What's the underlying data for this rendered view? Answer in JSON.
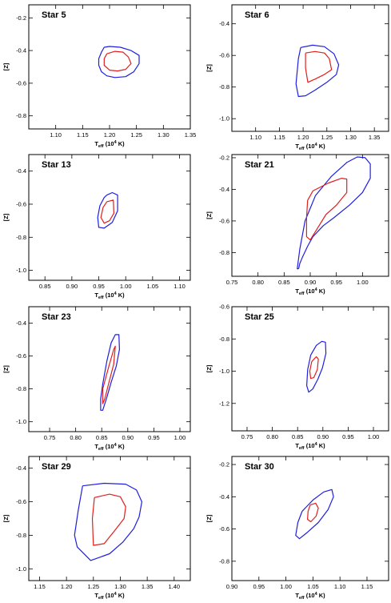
{
  "colors": {
    "outer": "#1f1fe0",
    "inner": "#e01f1f",
    "frame": "#000000"
  },
  "chart_data": [
    {
      "type": "line",
      "title": "Star 5",
      "xlabel": "T_eff (10^4 K)",
      "xlabel_main": "T",
      "xlabel_sub": "eff",
      "xlabel_rest": " (10",
      "xlabel_sup": "4",
      "xlabel_tail": " K)",
      "ylabel": "[Z]",
      "xlim": [
        1.05,
        1.35
      ],
      "ylim": [
        -0.88,
        -0.12
      ],
      "xticks": [
        1.1,
        1.15,
        1.2,
        1.25,
        1.3,
        1.35
      ],
      "yticks": [
        -0.8,
        -0.6,
        -0.4,
        -0.2
      ],
      "series": [
        {
          "role": "outer",
          "x": [
            1.19,
            1.2,
            1.22,
            1.24,
            1.255,
            1.255,
            1.245,
            1.23,
            1.21,
            1.195,
            1.185,
            1.18,
            1.18,
            1.185,
            1.19
          ],
          "y": [
            -0.38,
            -0.375,
            -0.38,
            -0.4,
            -0.43,
            -0.48,
            -0.53,
            -0.56,
            -0.565,
            -0.555,
            -0.53,
            -0.49,
            -0.45,
            -0.41,
            -0.38
          ]
        },
        {
          "role": "inner",
          "x": [
            1.195,
            1.21,
            1.225,
            1.235,
            1.24,
            1.23,
            1.215,
            1.2,
            1.19,
            1.19,
            1.195
          ],
          "y": [
            -0.42,
            -0.405,
            -0.41,
            -0.44,
            -0.48,
            -0.515,
            -0.525,
            -0.52,
            -0.49,
            -0.45,
            -0.42
          ]
        }
      ]
    },
    {
      "type": "line",
      "title": "Star 6",
      "xlabel": "T_eff (10^4 K)",
      "xlabel_main": "T",
      "xlabel_sub": "eff",
      "xlabel_rest": " (10",
      "xlabel_sup": "4",
      "xlabel_tail": " K)",
      "ylabel": "[Z]",
      "xlim": [
        1.05,
        1.38
      ],
      "ylim": [
        -1.08,
        -0.28
      ],
      "xticks": [
        1.1,
        1.15,
        1.2,
        1.25,
        1.3,
        1.35
      ],
      "yticks": [
        -1.0,
        -0.8,
        -0.6,
        -0.4
      ],
      "series": [
        {
          "role": "outer",
          "x": [
            1.195,
            1.22,
            1.245,
            1.265,
            1.275,
            1.27,
            1.25,
            1.225,
            1.205,
            1.19,
            1.185,
            1.19,
            1.195
          ],
          "y": [
            -0.55,
            -0.535,
            -0.545,
            -0.59,
            -0.66,
            -0.72,
            -0.77,
            -0.82,
            -0.855,
            -0.86,
            -0.78,
            -0.62,
            -0.55
          ]
        },
        {
          "role": "inner",
          "x": [
            1.205,
            1.225,
            1.245,
            1.255,
            1.26,
            1.245,
            1.225,
            1.21,
            1.205,
            1.205
          ],
          "y": [
            -0.585,
            -0.575,
            -0.585,
            -0.62,
            -0.69,
            -0.72,
            -0.75,
            -0.77,
            -0.68,
            -0.585
          ]
        }
      ]
    },
    {
      "type": "line",
      "title": "Star 13",
      "xlabel": "T_eff (10^4 K)",
      "xlabel_main": "T",
      "xlabel_sub": "eff",
      "xlabel_rest": " (10",
      "xlabel_sup": "4",
      "xlabel_tail": " K)",
      "ylabel": "[Z]",
      "xlim": [
        0.82,
        1.12
      ],
      "ylim": [
        -1.06,
        -0.3
      ],
      "xticks": [
        0.85,
        0.9,
        0.95,
        1.0,
        1.05,
        1.1
      ],
      "yticks": [
        -1.0,
        -0.8,
        -0.6,
        -0.4
      ],
      "series": [
        {
          "role": "outer",
          "x": [
            0.965,
            0.975,
            0.985,
            0.985,
            0.975,
            0.96,
            0.95,
            0.948,
            0.952,
            0.96,
            0.965
          ],
          "y": [
            -0.545,
            -0.53,
            -0.545,
            -0.64,
            -0.71,
            -0.745,
            -0.74,
            -0.68,
            -0.61,
            -0.56,
            -0.545
          ]
        },
        {
          "role": "inner",
          "x": [
            0.965,
            0.977,
            0.978,
            0.97,
            0.96,
            0.954,
            0.958,
            0.965
          ],
          "y": [
            -0.585,
            -0.575,
            -0.655,
            -0.7,
            -0.715,
            -0.68,
            -0.62,
            -0.585
          ]
        }
      ]
    },
    {
      "type": "line",
      "title": "Star 21",
      "xlabel": "T_eff (10^4 K)",
      "xlabel_main": "T",
      "xlabel_sub": "eff",
      "xlabel_rest": " (10",
      "xlabel_sup": "4",
      "xlabel_tail": " K)",
      "ylabel": "[Z]",
      "xlim": [
        0.75,
        1.05
      ],
      "ylim": [
        -0.95,
        -0.18
      ],
      "xticks": [
        0.75,
        0.8,
        0.85,
        0.9,
        0.95,
        1.0
      ],
      "yticks": [
        -0.8,
        -0.6,
        -0.4,
        -0.2
      ],
      "series": [
        {
          "role": "outer",
          "x": [
            0.875,
            0.88,
            0.89,
            0.91,
            0.94,
            0.97,
            0.99,
            1.005,
            1.015,
            1.015,
            1.0,
            0.975,
            0.945,
            0.925,
            0.905,
            0.895,
            0.885,
            0.88,
            0.878,
            0.875
          ],
          "y": [
            -0.905,
            -0.78,
            -0.6,
            -0.44,
            -0.32,
            -0.23,
            -0.195,
            -0.2,
            -0.24,
            -0.33,
            -0.42,
            -0.5,
            -0.58,
            -0.63,
            -0.7,
            -0.76,
            -0.83,
            -0.87,
            -0.9,
            -0.905
          ]
        },
        {
          "role": "inner",
          "x": [
            0.895,
            0.905,
            0.935,
            0.96,
            0.97,
            0.97,
            0.95,
            0.93,
            0.915,
            0.9,
            0.893,
            0.893,
            0.895
          ],
          "y": [
            -0.47,
            -0.41,
            -0.36,
            -0.33,
            -0.335,
            -0.42,
            -0.5,
            -0.56,
            -0.64,
            -0.72,
            -0.7,
            -0.58,
            -0.47
          ]
        }
      ]
    },
    {
      "type": "line",
      "title": "Star 23",
      "xlabel": "T_eff (10^4 K)",
      "xlabel_main": "T",
      "xlabel_sub": "eff",
      "xlabel_rest": " (10",
      "xlabel_sup": "4",
      "xlabel_tail": " K)",
      "ylabel": "[Z]",
      "xlim": [
        0.71,
        1.02
      ],
      "ylim": [
        -1.06,
        -0.3
      ],
      "xticks": [
        0.75,
        0.8,
        0.85,
        0.9,
        0.95,
        1.0
      ],
      "yticks": [
        -1.0,
        -0.8,
        -0.6,
        -0.4
      ],
      "series": [
        {
          "role": "outer",
          "x": [
            0.852,
            0.86,
            0.868,
            0.876,
            0.883,
            0.884,
            0.878,
            0.868,
            0.86,
            0.852,
            0.848,
            0.848,
            0.852
          ],
          "y": [
            -0.77,
            -0.63,
            -0.52,
            -0.47,
            -0.47,
            -0.56,
            -0.66,
            -0.76,
            -0.85,
            -0.93,
            -0.93,
            -0.86,
            -0.77
          ]
        },
        {
          "role": "inner",
          "x": [
            0.852,
            0.863,
            0.873,
            0.876,
            0.873,
            0.864,
            0.856,
            0.852,
            0.852
          ],
          "y": [
            -0.8,
            -0.67,
            -0.56,
            -0.54,
            -0.65,
            -0.76,
            -0.86,
            -0.89,
            -0.8
          ]
        }
      ]
    },
    {
      "type": "line",
      "title": "Star 25",
      "xlabel": "T_eff (10^4 K)",
      "xlabel_main": "T",
      "xlabel_sub": "eff",
      "xlabel_rest": " (10",
      "xlabel_sup": "4",
      "xlabel_tail": " K)",
      "ylabel": "[Z]",
      "xlim": [
        0.72,
        1.03
      ],
      "ylim": [
        -1.37,
        -0.6
      ],
      "xticks": [
        0.75,
        0.8,
        0.85,
        0.9,
        0.95,
        1.0
      ],
      "yticks": [
        -1.2,
        -1.0,
        -0.8,
        -0.6
      ],
      "series": [
        {
          "role": "outer",
          "x": [
            0.876,
            0.887,
            0.898,
            0.905,
            0.906,
            0.899,
            0.89,
            0.88,
            0.872,
            0.868,
            0.87,
            0.876
          ],
          "y": [
            -0.9,
            -0.84,
            -0.815,
            -0.82,
            -0.89,
            -0.98,
            -1.05,
            -1.11,
            -1.13,
            -1.09,
            -0.99,
            -0.9
          ]
        },
        {
          "role": "inner",
          "x": [
            0.878,
            0.887,
            0.891,
            0.889,
            0.882,
            0.876,
            0.874,
            0.878
          ],
          "y": [
            -0.94,
            -0.91,
            -0.925,
            -0.99,
            -1.04,
            -1.045,
            -1.0,
            -0.94
          ]
        }
      ]
    },
    {
      "type": "line",
      "title": "Star 29",
      "xlabel": "T_eff (10^4 K)",
      "xlabel_main": "T",
      "xlabel_sub": "eff",
      "xlabel_rest": " (10",
      "xlabel_sup": "4",
      "xlabel_tail": " K)",
      "ylabel": "[Z]",
      "xlim": [
        1.13,
        1.43
      ],
      "ylim": [
        -1.07,
        -0.33
      ],
      "xticks": [
        1.15,
        1.2,
        1.25,
        1.3,
        1.35,
        1.4
      ],
      "yticks": [
        -1.0,
        -0.8,
        -0.6,
        -0.4
      ],
      "series": [
        {
          "role": "outer",
          "x": [
            1.23,
            1.27,
            1.31,
            1.33,
            1.34,
            1.335,
            1.325,
            1.305,
            1.28,
            1.245,
            1.22,
            1.215,
            1.222,
            1.23
          ],
          "y": [
            -0.505,
            -0.49,
            -0.495,
            -0.53,
            -0.6,
            -0.69,
            -0.76,
            -0.84,
            -0.91,
            -0.95,
            -0.87,
            -0.8,
            -0.65,
            -0.505
          ]
        },
        {
          "role": "inner",
          "x": [
            1.252,
            1.28,
            1.3,
            1.31,
            1.307,
            1.29,
            1.27,
            1.25,
            1.248,
            1.252
          ],
          "y": [
            -0.575,
            -0.555,
            -0.57,
            -0.63,
            -0.7,
            -0.77,
            -0.85,
            -0.86,
            -0.7,
            -0.575
          ]
        }
      ]
    },
    {
      "type": "line",
      "title": "Star 30",
      "xlabel": "T_eff (10^4 K)",
      "xlabel_main": "T",
      "xlabel_sub": "eff",
      "xlabel_rest": " (10",
      "xlabel_sup": "4",
      "xlabel_tail": " K)",
      "ylabel": "[Z]",
      "xlim": [
        0.9,
        1.19
      ],
      "ylim": [
        -0.92,
        -0.15
      ],
      "xticks": [
        0.9,
        0.95,
        1.0,
        1.05,
        1.1,
        1.15
      ],
      "yticks": [
        -0.8,
        -0.6,
        -0.4,
        -0.2
      ],
      "series": [
        {
          "role": "outer",
          "x": [
            1.03,
            1.05,
            1.07,
            1.085,
            1.088,
            1.078,
            1.06,
            1.04,
            1.025,
            1.018,
            1.022,
            1.03
          ],
          "y": [
            -0.49,
            -0.42,
            -0.37,
            -0.355,
            -0.4,
            -0.48,
            -0.56,
            -0.62,
            -0.66,
            -0.64,
            -0.56,
            -0.49
          ]
        },
        {
          "role": "inner",
          "x": [
            1.045,
            1.055,
            1.06,
            1.056,
            1.046,
            1.04,
            1.041,
            1.045
          ],
          "y": [
            -0.45,
            -0.44,
            -0.47,
            -0.52,
            -0.555,
            -0.54,
            -0.49,
            -0.45
          ]
        }
      ]
    }
  ]
}
